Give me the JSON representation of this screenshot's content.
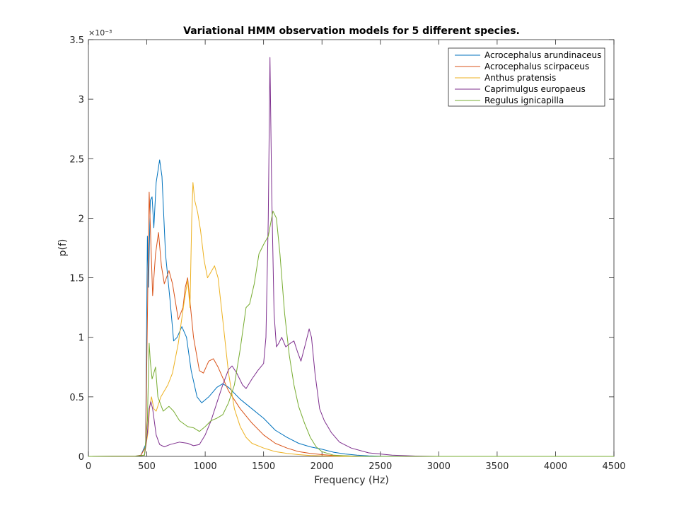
{
  "chart_data": {
    "type": "line",
    "title": "Variational HMM observation models for 5 different species.",
    "xlabel": "Frequency (Hz)",
    "ylabel": "p(f)",
    "y_exponent_label": "×10⁻³",
    "xlim": [
      0,
      4500
    ],
    "ylim": [
      0,
      3.5
    ],
    "x_ticks": [
      0,
      500,
      1000,
      1500,
      2000,
      2500,
      3000,
      3500,
      4000,
      4500
    ],
    "x_tick_labels": [
      "0",
      "500",
      "1000",
      "1500",
      "2000",
      "2500",
      "3000",
      "3500",
      "4000",
      "4500"
    ],
    "y_ticks": [
      0,
      0.5,
      1,
      1.5,
      2,
      2.5,
      3,
      3.5
    ],
    "y_tick_labels": [
      "0",
      "0.5",
      "1",
      "1.5",
      "2",
      "2.5",
      "3",
      "3.5"
    ],
    "grid": false,
    "legend_position": "top-right",
    "series": [
      {
        "name": "Acrocephalus arundinaceus",
        "color": "#0072BD",
        "points": [
          [
            0,
            0
          ],
          [
            400,
            0.002
          ],
          [
            450,
            0.01
          ],
          [
            490,
            0.1
          ],
          [
            505,
            1.85
          ],
          [
            515,
            1.42
          ],
          [
            530,
            2.15
          ],
          [
            545,
            2.18
          ],
          [
            560,
            1.92
          ],
          [
            580,
            2.3
          ],
          [
            610,
            2.49
          ],
          [
            630,
            2.35
          ],
          [
            660,
            1.7
          ],
          [
            700,
            1.3
          ],
          [
            730,
            0.97
          ],
          [
            760,
            1.0
          ],
          [
            800,
            1.09
          ],
          [
            840,
            1.0
          ],
          [
            880,
            0.72
          ],
          [
            930,
            0.5
          ],
          [
            970,
            0.45
          ],
          [
            1030,
            0.5
          ],
          [
            1100,
            0.58
          ],
          [
            1150,
            0.61
          ],
          [
            1200,
            0.58
          ],
          [
            1300,
            0.48
          ],
          [
            1400,
            0.4
          ],
          [
            1500,
            0.32
          ],
          [
            1600,
            0.22
          ],
          [
            1700,
            0.16
          ],
          [
            1800,
            0.11
          ],
          [
            1900,
            0.08
          ],
          [
            2000,
            0.06
          ],
          [
            2100,
            0.035
          ],
          [
            2200,
            0.02
          ],
          [
            2300,
            0.01
          ],
          [
            2400,
            0.005
          ],
          [
            2500,
            0.002
          ],
          [
            2800,
            0
          ],
          [
            4500,
            0
          ]
        ]
      },
      {
        "name": "Acrocephalus scirpaceus",
        "color": "#D95319",
        "points": [
          [
            0,
            0
          ],
          [
            400,
            0.002
          ],
          [
            450,
            0.01
          ],
          [
            490,
            0.08
          ],
          [
            510,
            1.5
          ],
          [
            520,
            2.22
          ],
          [
            535,
            1.8
          ],
          [
            550,
            1.35
          ],
          [
            575,
            1.7
          ],
          [
            600,
            1.88
          ],
          [
            625,
            1.6
          ],
          [
            650,
            1.45
          ],
          [
            690,
            1.56
          ],
          [
            720,
            1.45
          ],
          [
            770,
            1.15
          ],
          [
            810,
            1.25
          ],
          [
            830,
            1.42
          ],
          [
            850,
            1.5
          ],
          [
            870,
            1.3
          ],
          [
            900,
            1.0
          ],
          [
            950,
            0.72
          ],
          [
            985,
            0.7
          ],
          [
            1030,
            0.8
          ],
          [
            1070,
            0.82
          ],
          [
            1110,
            0.75
          ],
          [
            1200,
            0.55
          ],
          [
            1300,
            0.4
          ],
          [
            1400,
            0.28
          ],
          [
            1500,
            0.18
          ],
          [
            1600,
            0.11
          ],
          [
            1700,
            0.07
          ],
          [
            1800,
            0.04
          ],
          [
            1900,
            0.025
          ],
          [
            2000,
            0.015
          ],
          [
            2100,
            0.008
          ],
          [
            2200,
            0.004
          ],
          [
            2400,
            0
          ],
          [
            4500,
            0
          ]
        ]
      },
      {
        "name": "Anthus pratensis",
        "color": "#EDB120",
        "points": [
          [
            0,
            0
          ],
          [
            400,
            0.002
          ],
          [
            480,
            0.01
          ],
          [
            510,
            0.2
          ],
          [
            525,
            0.42
          ],
          [
            540,
            0.5
          ],
          [
            560,
            0.4
          ],
          [
            580,
            0.38
          ],
          [
            620,
            0.5
          ],
          [
            680,
            0.6
          ],
          [
            720,
            0.7
          ],
          [
            770,
            0.95
          ],
          [
            820,
            1.3
          ],
          [
            850,
            1.48
          ],
          [
            870,
            1.25
          ],
          [
            885,
            2.0
          ],
          [
            895,
            2.3
          ],
          [
            910,
            2.15
          ],
          [
            935,
            2.05
          ],
          [
            960,
            1.9
          ],
          [
            990,
            1.65
          ],
          [
            1020,
            1.5
          ],
          [
            1050,
            1.55
          ],
          [
            1080,
            1.6
          ],
          [
            1110,
            1.5
          ],
          [
            1150,
            1.15
          ],
          [
            1200,
            0.7
          ],
          [
            1250,
            0.4
          ],
          [
            1300,
            0.25
          ],
          [
            1350,
            0.16
          ],
          [
            1400,
            0.11
          ],
          [
            1500,
            0.07
          ],
          [
            1600,
            0.04
          ],
          [
            1700,
            0.025
          ],
          [
            1800,
            0.015
          ],
          [
            1900,
            0.008
          ],
          [
            2000,
            0.004
          ],
          [
            2200,
            0
          ],
          [
            4500,
            0
          ]
        ]
      },
      {
        "name": "Caprimulgus europaeus",
        "color": "#7E2F8E",
        "points": [
          [
            0,
            0
          ],
          [
            400,
            0.002
          ],
          [
            480,
            0.01
          ],
          [
            505,
            0.2
          ],
          [
            520,
            0.4
          ],
          [
            535,
            0.46
          ],
          [
            550,
            0.4
          ],
          [
            580,
            0.18
          ],
          [
            610,
            0.1
          ],
          [
            650,
            0.08
          ],
          [
            700,
            0.1
          ],
          [
            780,
            0.12
          ],
          [
            850,
            0.11
          ],
          [
            900,
            0.09
          ],
          [
            950,
            0.1
          ],
          [
            1000,
            0.18
          ],
          [
            1050,
            0.3
          ],
          [
            1100,
            0.45
          ],
          [
            1150,
            0.6
          ],
          [
            1200,
            0.73
          ],
          [
            1230,
            0.76
          ],
          [
            1270,
            0.7
          ],
          [
            1320,
            0.6
          ],
          [
            1350,
            0.57
          ],
          [
            1400,
            0.65
          ],
          [
            1450,
            0.72
          ],
          [
            1500,
            0.78
          ],
          [
            1520,
            1.0
          ],
          [
            1540,
            2.0
          ],
          [
            1555,
            3.35
          ],
          [
            1570,
            2.2
          ],
          [
            1590,
            1.2
          ],
          [
            1610,
            0.92
          ],
          [
            1630,
            0.95
          ],
          [
            1655,
            1.0
          ],
          [
            1690,
            0.92
          ],
          [
            1730,
            0.95
          ],
          [
            1760,
            0.97
          ],
          [
            1790,
            0.88
          ],
          [
            1820,
            0.8
          ],
          [
            1860,
            0.95
          ],
          [
            1890,
            1.07
          ],
          [
            1910,
            1.0
          ],
          [
            1940,
            0.7
          ],
          [
            1980,
            0.4
          ],
          [
            2020,
            0.3
          ],
          [
            2080,
            0.2
          ],
          [
            2150,
            0.12
          ],
          [
            2250,
            0.07
          ],
          [
            2400,
            0.03
          ],
          [
            2600,
            0.01
          ],
          [
            2800,
            0.003
          ],
          [
            3000,
            0
          ],
          [
            4500,
            0
          ]
        ]
      },
      {
        "name": "Regulus ignicapilla",
        "color": "#77AC30",
        "points": [
          [
            0,
            0
          ],
          [
            400,
            0.002
          ],
          [
            480,
            0.01
          ],
          [
            505,
            0.3
          ],
          [
            520,
            0.95
          ],
          [
            530,
            0.8
          ],
          [
            545,
            0.65
          ],
          [
            560,
            0.7
          ],
          [
            575,
            0.75
          ],
          [
            595,
            0.5
          ],
          [
            640,
            0.38
          ],
          [
            690,
            0.42
          ],
          [
            730,
            0.38
          ],
          [
            780,
            0.3
          ],
          [
            850,
            0.25
          ],
          [
            900,
            0.24
          ],
          [
            950,
            0.21
          ],
          [
            1000,
            0.25
          ],
          [
            1050,
            0.3
          ],
          [
            1100,
            0.32
          ],
          [
            1150,
            0.35
          ],
          [
            1200,
            0.45
          ],
          [
            1250,
            0.6
          ],
          [
            1300,
            0.9
          ],
          [
            1350,
            1.25
          ],
          [
            1380,
            1.28
          ],
          [
            1420,
            1.45
          ],
          [
            1460,
            1.7
          ],
          [
            1500,
            1.78
          ],
          [
            1540,
            1.85
          ],
          [
            1580,
            2.06
          ],
          [
            1610,
            2.0
          ],
          [
            1640,
            1.7
          ],
          [
            1680,
            1.2
          ],
          [
            1720,
            0.85
          ],
          [
            1760,
            0.6
          ],
          [
            1800,
            0.42
          ],
          [
            1850,
            0.28
          ],
          [
            1900,
            0.16
          ],
          [
            1950,
            0.08
          ],
          [
            2000,
            0.04
          ],
          [
            2100,
            0.01
          ],
          [
            2300,
            0
          ],
          [
            4500,
            0
          ]
        ]
      }
    ]
  }
}
